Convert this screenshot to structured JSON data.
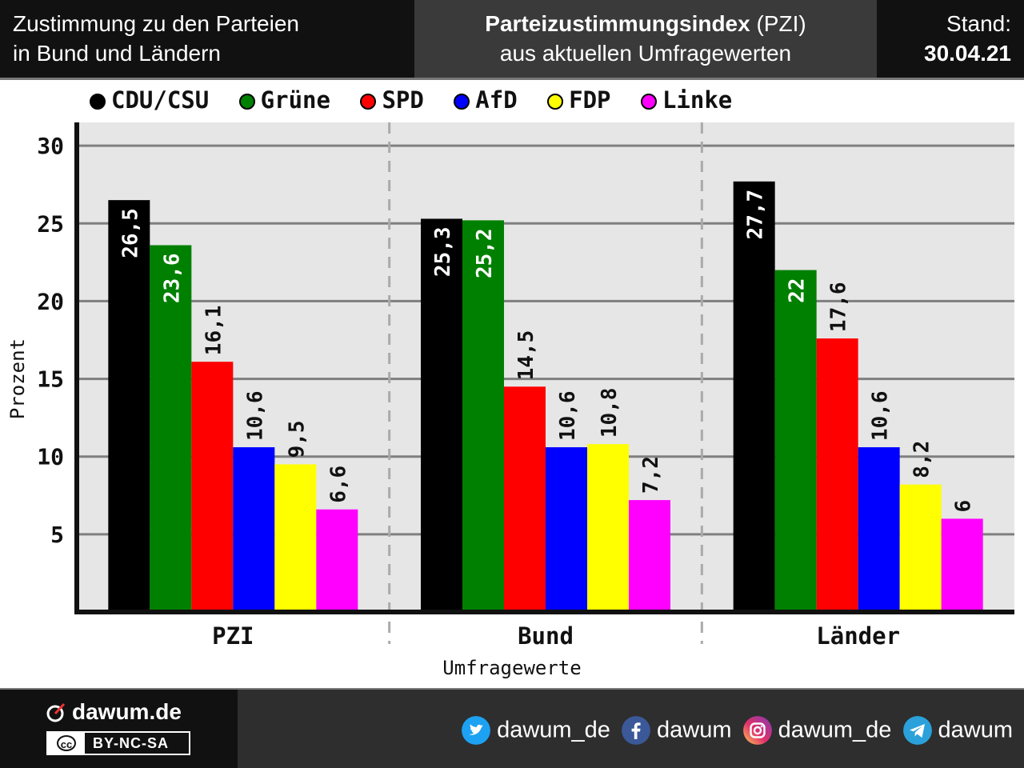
{
  "header": {
    "left_line1": "Zustimmung zu den Parteien",
    "left_line2": "in Bund und Ländern",
    "title_bold": "Parteizustimmungsindex",
    "title_rest": " (PZI)",
    "subtitle": "aus aktuellen Umfragewerten",
    "stand_label": "Stand:",
    "stand_date": "30.04.21"
  },
  "legend": [
    {
      "label": "CDU/CSU",
      "color": "#000000"
    },
    {
      "label": "Grüne",
      "color": "#008000"
    },
    {
      "label": "SPD",
      "color": "#ff0000"
    },
    {
      "label": "AfD",
      "color": "#0000ff"
    },
    {
      "label": "FDP",
      "color": "#ffff00"
    },
    {
      "label": "Linke",
      "color": "#ff00ff"
    }
  ],
  "chart_data": {
    "type": "bar",
    "categories": [
      "PZI",
      "Bund",
      "Länder"
    ],
    "series": [
      {
        "name": "CDU/CSU",
        "color": "#000000",
        "values": [
          26.5,
          25.3,
          27.7
        ],
        "labels": [
          "26,5",
          "25,3",
          "27,7"
        ]
      },
      {
        "name": "Grüne",
        "color": "#008000",
        "values": [
          23.6,
          25.2,
          22
        ],
        "labels": [
          "23,6",
          "25,2",
          "22"
        ]
      },
      {
        "name": "SPD",
        "color": "#ff0000",
        "values": [
          16.1,
          14.5,
          17.6
        ],
        "labels": [
          "16,1",
          "14,5",
          "17,6"
        ]
      },
      {
        "name": "AfD",
        "color": "#0000ff",
        "values": [
          10.6,
          10.6,
          10.6
        ],
        "labels": [
          "10,6",
          "10,6",
          "10,6"
        ]
      },
      {
        "name": "FDP",
        "color": "#ffff00",
        "values": [
          9.5,
          10.8,
          8.2
        ],
        "labels": [
          "9,5",
          "10,8",
          "8,2"
        ]
      },
      {
        "name": "Linke",
        "color": "#ff00ff",
        "values": [
          6.6,
          7.2,
          6
        ],
        "labels": [
          "6,6",
          "7,2",
          "6"
        ]
      }
    ],
    "xlabel": "Umfragewerte",
    "ylabel": "Prozent",
    "ylim": [
      0,
      31.5
    ],
    "yticks": [
      5,
      10,
      15,
      20,
      25,
      30
    ],
    "grid": true,
    "legend_position": "top"
  },
  "footer": {
    "brand": "dawum.de",
    "license": "BY-NC-SA",
    "socials": [
      {
        "icon": "twitter-icon",
        "handle": "dawum_de",
        "color": "#1da1f2"
      },
      {
        "icon": "facebook-icon",
        "handle": "dawum",
        "color": "#3b5998"
      },
      {
        "icon": "instagram-icon",
        "handle": "dawum_de",
        "color": "#d6249f"
      },
      {
        "icon": "telegram-icon",
        "handle": "dawum",
        "color": "#2aa1da"
      }
    ]
  }
}
